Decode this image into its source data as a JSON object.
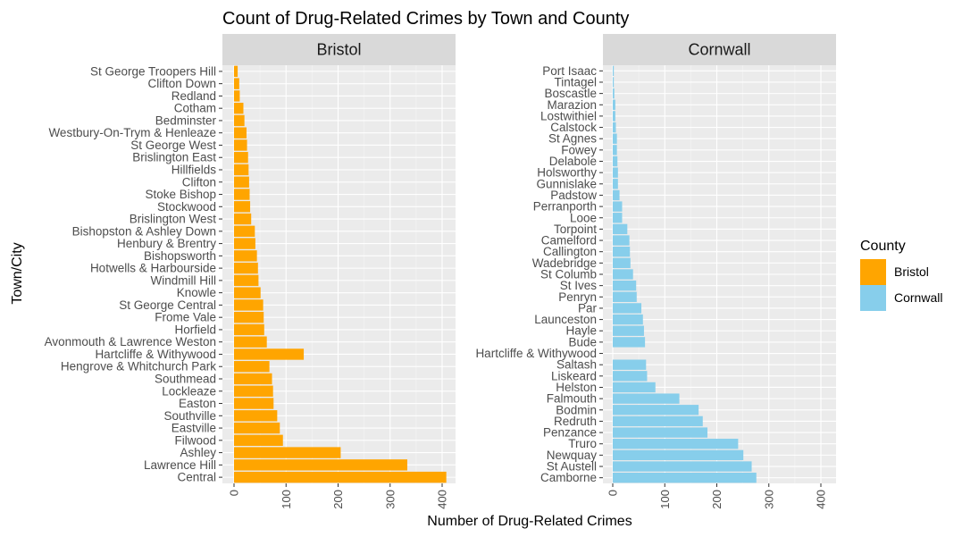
{
  "chart_data": {
    "type": "bar",
    "orientation": "horizontal",
    "title": "Count of Drug-Related Crimes by Town and County",
    "xlabel": "Number of Drug-Related Crimes",
    "ylabel": "Town/City",
    "xlim": [
      0,
      420
    ],
    "xticks": [
      0,
      100,
      200,
      300,
      400
    ],
    "grid": true,
    "legend": {
      "title": "County",
      "position": "right",
      "entries": [
        {
          "label": "Bristol",
          "color": "#FFA500"
        },
        {
          "label": "Cornwall",
          "color": "#87CEEB"
        }
      ]
    },
    "panels": [
      {
        "name": "Bristol",
        "color": "#FFA500",
        "categories": [
          "St George Troopers Hill",
          "Clifton Down",
          "Redland",
          "Cotham",
          "Bedminster",
          "Westbury-On-Trym & Henleaze",
          "St George West",
          "Brislington East",
          "Hillfields",
          "Clifton",
          "Stoke Bishop",
          "Stockwood",
          "Brislington West",
          "Bishopston & Ashley Down",
          "Henbury & Brentry",
          "Bishopsworth",
          "Hotwells & Harbourside",
          "Windmill Hill",
          "Knowle",
          "St George Central",
          "Frome Vale",
          "Horfield",
          "Avonmouth & Lawrence Weston",
          "Hartcliffe & Withywood",
          "Hengrove & Whitchurch Park",
          "Southmead",
          "Lockleaze",
          "Easton",
          "Southville",
          "Eastville",
          "Filwood",
          "Ashley",
          "Lawrence Hill",
          "Central"
        ],
        "values": [
          7,
          10,
          11,
          18,
          20,
          24,
          25,
          27,
          28,
          29,
          30,
          31,
          33,
          40,
          41,
          44,
          46,
          47,
          51,
          56,
          57,
          58,
          63,
          134,
          68,
          73,
          75,
          76,
          83,
          88,
          94,
          205,
          333,
          408
        ]
      },
      {
        "name": "Cornwall",
        "color": "#87CEEB",
        "categories": [
          "Port Isaac",
          "Tintagel",
          "Boscastle",
          "Marazion",
          "Lostwithiel",
          "Calstock",
          "St Agnes",
          "Fowey",
          "Delabole",
          "Holsworthy",
          "Gunnislake",
          "Padstow",
          "Perranporth",
          "Looe",
          "Torpoint",
          "Camelford",
          "Callington",
          "Wadebridge",
          "St Columb",
          "St Ives",
          "Penryn",
          "Par",
          "Launceston",
          "Hayle",
          "Bude",
          "Hartcliffe & Withywood",
          "Saltash",
          "Liskeard",
          "Helston",
          "Falmouth",
          "Bodmin",
          "Redruth",
          "Penzance",
          "Truro",
          "Newquay",
          "St Austell",
          "Camborne"
        ],
        "values": [
          2,
          2,
          3,
          5,
          5,
          6,
          8,
          8,
          9,
          10,
          10,
          13,
          18,
          18,
          28,
          32,
          33,
          34,
          39,
          45,
          46,
          55,
          58,
          60,
          62,
          0,
          64,
          66,
          82,
          128,
          165,
          173,
          182,
          241,
          251,
          267,
          276
        ]
      }
    ]
  }
}
